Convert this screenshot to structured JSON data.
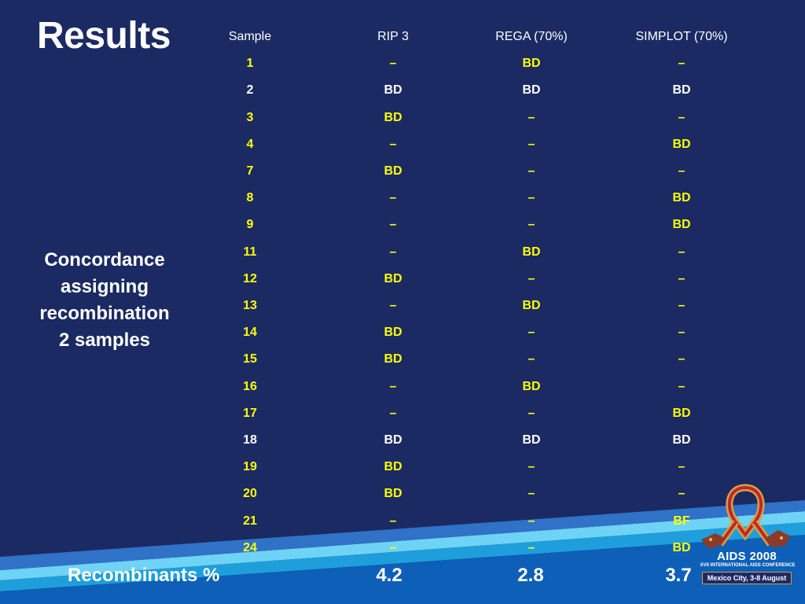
{
  "slide": {
    "title": "Results",
    "side_note_lines": [
      "Concordance",
      "assigning",
      "recombination",
      "2 samples"
    ]
  },
  "table": {
    "headers": [
      "Sample",
      "RIP 3",
      "REGA (70%)",
      "SIMPLOT (70%)"
    ],
    "rows": [
      {
        "cells": [
          "1",
          "–",
          "BD",
          "–"
        ],
        "color": "yellow"
      },
      {
        "cells": [
          "2",
          "BD",
          "BD",
          "BD"
        ],
        "color": "white"
      },
      {
        "cells": [
          "3",
          "BD",
          "–",
          "–"
        ],
        "color": "yellow"
      },
      {
        "cells": [
          "4",
          "–",
          "–",
          "BD"
        ],
        "color": "yellow"
      },
      {
        "cells": [
          "7",
          "BD",
          "–",
          "–"
        ],
        "color": "yellow"
      },
      {
        "cells": [
          "8",
          "–",
          "–",
          "BD"
        ],
        "color": "yellow"
      },
      {
        "cells": [
          "9",
          "–",
          "–",
          "BD"
        ],
        "color": "yellow"
      },
      {
        "cells": [
          "11",
          "–",
          "BD",
          "–"
        ],
        "color": "yellow"
      },
      {
        "cells": [
          "12",
          "BD",
          "–",
          "–"
        ],
        "color": "yellow"
      },
      {
        "cells": [
          "13",
          "–",
          "BD",
          "–"
        ],
        "color": "yellow"
      },
      {
        "cells": [
          "14",
          "BD",
          "–",
          "–"
        ],
        "color": "yellow"
      },
      {
        "cells": [
          "15",
          "BD",
          "–",
          "–"
        ],
        "color": "yellow"
      },
      {
        "cells": [
          "16",
          "–",
          "BD",
          "–"
        ],
        "color": "yellow"
      },
      {
        "cells": [
          "17",
          "–",
          "–",
          "BD"
        ],
        "color": "yellow"
      },
      {
        "cells": [
          "18",
          "BD",
          "BD",
          "BD"
        ],
        "color": "white"
      },
      {
        "cells": [
          "19",
          "BD",
          "–",
          "–"
        ],
        "color": "yellow"
      },
      {
        "cells": [
          "20",
          "BD",
          "–",
          "–"
        ],
        "color": "yellow"
      },
      {
        "cells": [
          "21",
          "–",
          "–",
          "BF"
        ],
        "color": "yellow"
      },
      {
        "cells": [
          "24",
          "–",
          "–",
          "BD"
        ],
        "color": "yellow"
      }
    ]
  },
  "summary": {
    "label": "Recombinants %",
    "values": [
      "4.2",
      "2.8",
      "3.7"
    ]
  },
  "logo": {
    "title": "AIDS 2008",
    "subtitle": "XVII INTERNATIONAL AIDS CONFERENCE",
    "location": "Mexico City, 3-8 August"
  },
  "colors": {
    "background": "#1b2a62",
    "highlight": "#ffff00",
    "text": "#ffffff",
    "stripe_light": "#6fd3f5",
    "stripe_mid": "#1e9fdc",
    "stripe_dark": "#0d5fb8"
  }
}
